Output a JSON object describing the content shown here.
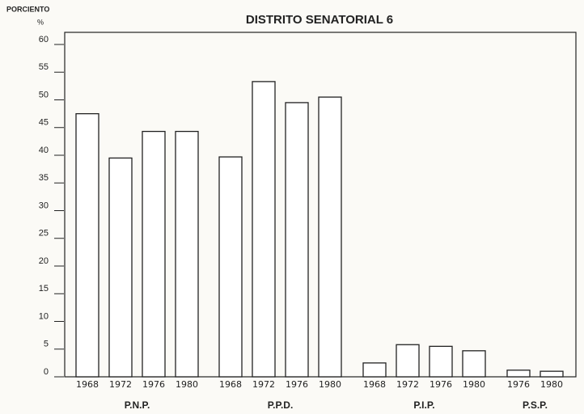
{
  "chart_data": {
    "type": "bar",
    "title": "DISTRITO SENATORIAL 6",
    "y_label": "PORCIENTO",
    "y_unit": "%",
    "groups": [
      {
        "name": "P.N.P.",
        "categories": [
          "1968",
          "1972",
          "1976",
          "1980"
        ],
        "values": [
          47.5,
          39.5,
          44.3,
          44.3
        ]
      },
      {
        "name": "P.P.D.",
        "categories": [
          "1968",
          "1972",
          "1976",
          "1980"
        ],
        "values": [
          39.7,
          53.3,
          49.5,
          50.5
        ]
      },
      {
        "name": "P.I.P.",
        "categories": [
          "1968",
          "1972",
          "1976",
          "1980"
        ],
        "values": [
          2.5,
          5.8,
          5.5,
          4.7
        ]
      },
      {
        "name": "P.S.P.",
        "categories": [
          "1976",
          "1980"
        ],
        "values": [
          1.2,
          1.0
        ]
      }
    ],
    "color": "#ffffff",
    "ylim": [
      0,
      60
    ],
    "yticks": [
      0,
      5,
      10,
      15,
      20,
      25,
      30,
      35,
      40,
      45,
      50,
      55,
      60
    ]
  }
}
